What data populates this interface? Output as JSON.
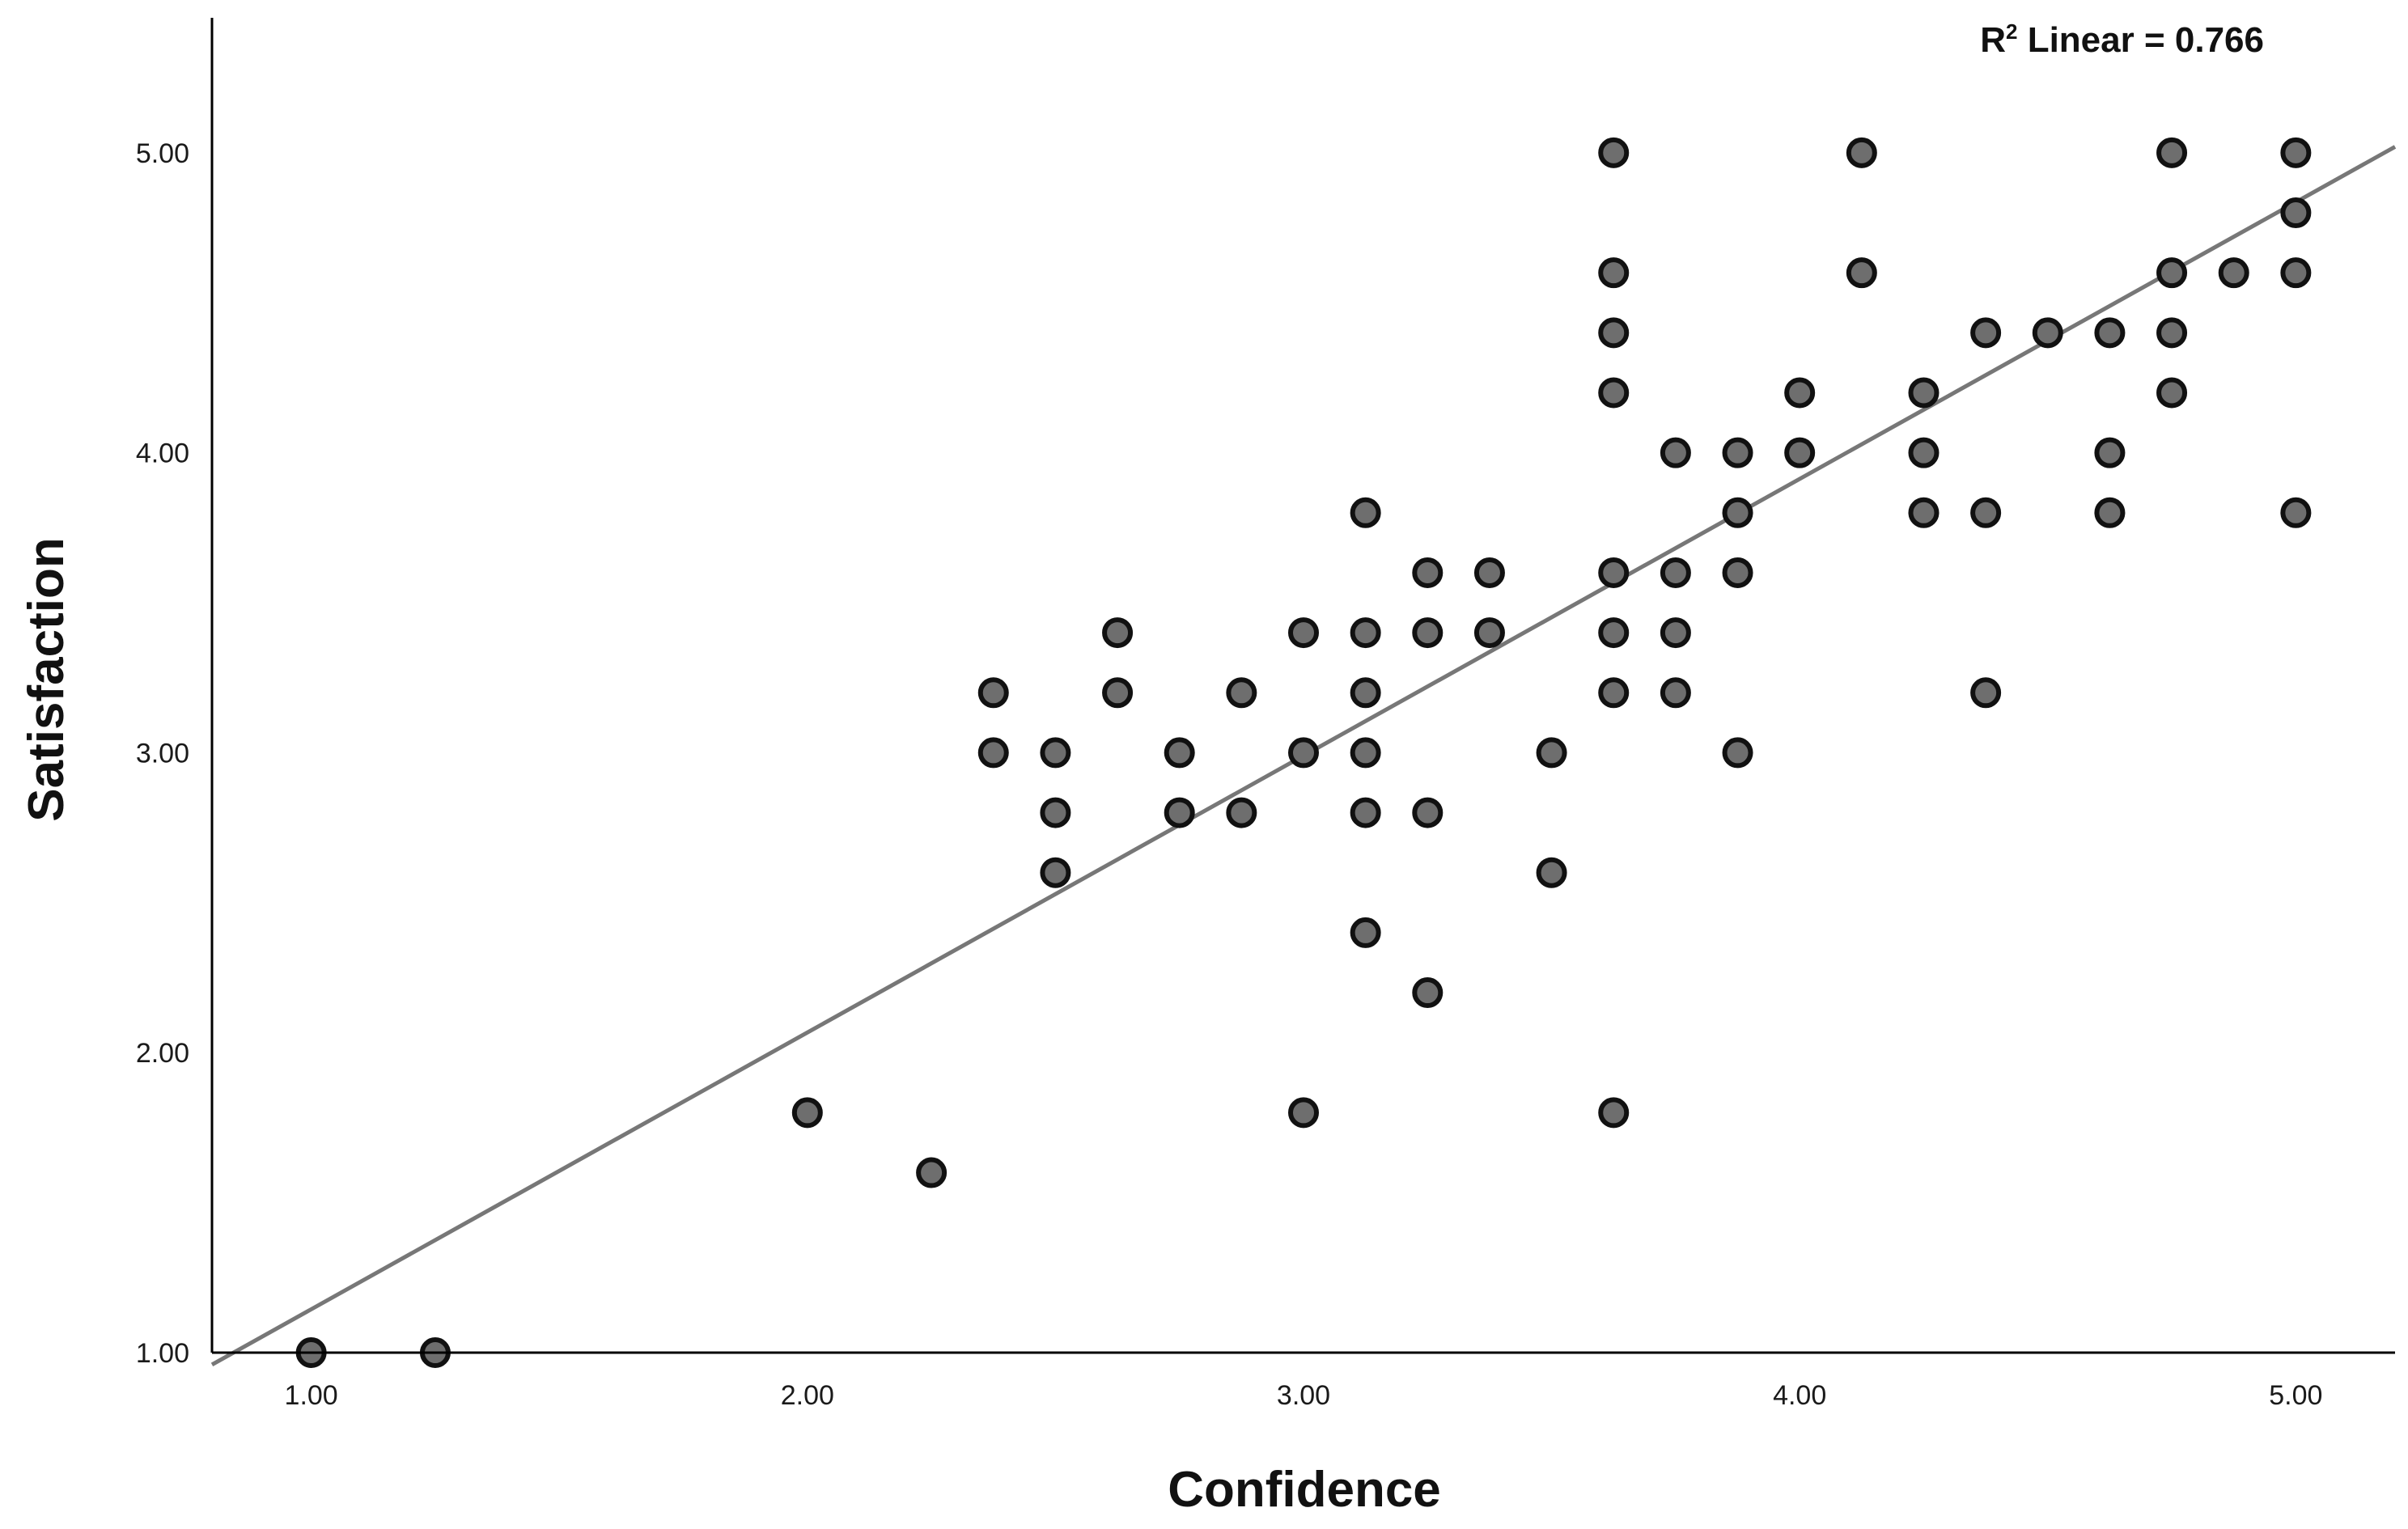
{
  "chart_data": {
    "type": "scatter",
    "xlabel": "Confidence",
    "ylabel": "Satisfaction",
    "xlim": [
      0.8,
      5.2
    ],
    "ylim": [
      1.0,
      5.45
    ],
    "xticks": [
      "1.00",
      "2.00",
      "3.00",
      "4.00",
      "5.00"
    ],
    "yticks": [
      "1.00",
      "2.00",
      "3.00",
      "4.00",
      "5.00"
    ],
    "annotation": {
      "r_label": "R",
      "r_sup": "2",
      "text": " Linear = 0.766"
    },
    "fit_line": {
      "x": [
        0.8,
        5.2
      ],
      "y": [
        0.96,
        5.02
      ]
    },
    "grid": false,
    "legend": "none",
    "colors": {
      "marker_fill": "#6e6e6e",
      "marker_edge": "#111111",
      "fit_line": "#777777",
      "axis": "#000000"
    },
    "points": [
      {
        "x": 1.0,
        "y": 1.0
      },
      {
        "x": 1.25,
        "y": 1.0
      },
      {
        "x": 2.0,
        "y": 1.8
      },
      {
        "x": 2.25,
        "y": 1.6
      },
      {
        "x": 2.375,
        "y": 3.2
      },
      {
        "x": 2.375,
        "y": 3.0
      },
      {
        "x": 2.5,
        "y": 3.0
      },
      {
        "x": 2.5,
        "y": 2.8
      },
      {
        "x": 2.5,
        "y": 2.6
      },
      {
        "x": 2.625,
        "y": 3.4
      },
      {
        "x": 2.625,
        "y": 3.2
      },
      {
        "x": 2.75,
        "y": 3.0
      },
      {
        "x": 2.75,
        "y": 2.8
      },
      {
        "x": 2.875,
        "y": 3.2
      },
      {
        "x": 2.875,
        "y": 2.8
      },
      {
        "x": 3.0,
        "y": 3.4
      },
      {
        "x": 3.0,
        "y": 3.0
      },
      {
        "x": 3.0,
        "y": 1.8
      },
      {
        "x": 3.125,
        "y": 3.8
      },
      {
        "x": 3.125,
        "y": 3.4
      },
      {
        "x": 3.125,
        "y": 3.2
      },
      {
        "x": 3.125,
        "y": 3.0
      },
      {
        "x": 3.125,
        "y": 2.8
      },
      {
        "x": 3.125,
        "y": 2.4
      },
      {
        "x": 3.25,
        "y": 3.6
      },
      {
        "x": 3.25,
        "y": 3.4
      },
      {
        "x": 3.25,
        "y": 2.8
      },
      {
        "x": 3.25,
        "y": 2.2
      },
      {
        "x": 3.375,
        "y": 3.6
      },
      {
        "x": 3.375,
        "y": 3.4
      },
      {
        "x": 3.5,
        "y": 3.0
      },
      {
        "x": 3.5,
        "y": 2.6
      },
      {
        "x": 3.625,
        "y": 5.0
      },
      {
        "x": 3.625,
        "y": 4.6
      },
      {
        "x": 3.625,
        "y": 4.4
      },
      {
        "x": 3.625,
        "y": 4.2
      },
      {
        "x": 3.625,
        "y": 3.6
      },
      {
        "x": 3.625,
        "y": 3.4
      },
      {
        "x": 3.625,
        "y": 3.2
      },
      {
        "x": 3.625,
        "y": 1.8
      },
      {
        "x": 3.75,
        "y": 4.0
      },
      {
        "x": 3.75,
        "y": 3.6
      },
      {
        "x": 3.75,
        "y": 3.4
      },
      {
        "x": 3.75,
        "y": 3.2
      },
      {
        "x": 3.875,
        "y": 4.0
      },
      {
        "x": 3.875,
        "y": 3.8
      },
      {
        "x": 3.875,
        "y": 3.6
      },
      {
        "x": 3.875,
        "y": 3.0
      },
      {
        "x": 4.0,
        "y": 4.2
      },
      {
        "x": 4.0,
        "y": 4.0
      },
      {
        "x": 4.125,
        "y": 5.0
      },
      {
        "x": 4.125,
        "y": 4.6
      },
      {
        "x": 4.25,
        "y": 4.2
      },
      {
        "x": 4.25,
        "y": 4.0
      },
      {
        "x": 4.25,
        "y": 3.8
      },
      {
        "x": 4.375,
        "y": 4.4
      },
      {
        "x": 4.375,
        "y": 3.8
      },
      {
        "x": 4.375,
        "y": 3.2
      },
      {
        "x": 4.5,
        "y": 4.4
      },
      {
        "x": 4.625,
        "y": 4.4
      },
      {
        "x": 4.625,
        "y": 4.0
      },
      {
        "x": 4.625,
        "y": 3.8
      },
      {
        "x": 4.75,
        "y": 5.0
      },
      {
        "x": 4.75,
        "y": 4.6
      },
      {
        "x": 4.75,
        "y": 4.4
      },
      {
        "x": 4.75,
        "y": 4.2
      },
      {
        "x": 4.875,
        "y": 4.6
      },
      {
        "x": 5.0,
        "y": 5.0
      },
      {
        "x": 5.0,
        "y": 4.8
      },
      {
        "x": 5.0,
        "y": 4.6
      },
      {
        "x": 5.0,
        "y": 3.8
      }
    ]
  }
}
